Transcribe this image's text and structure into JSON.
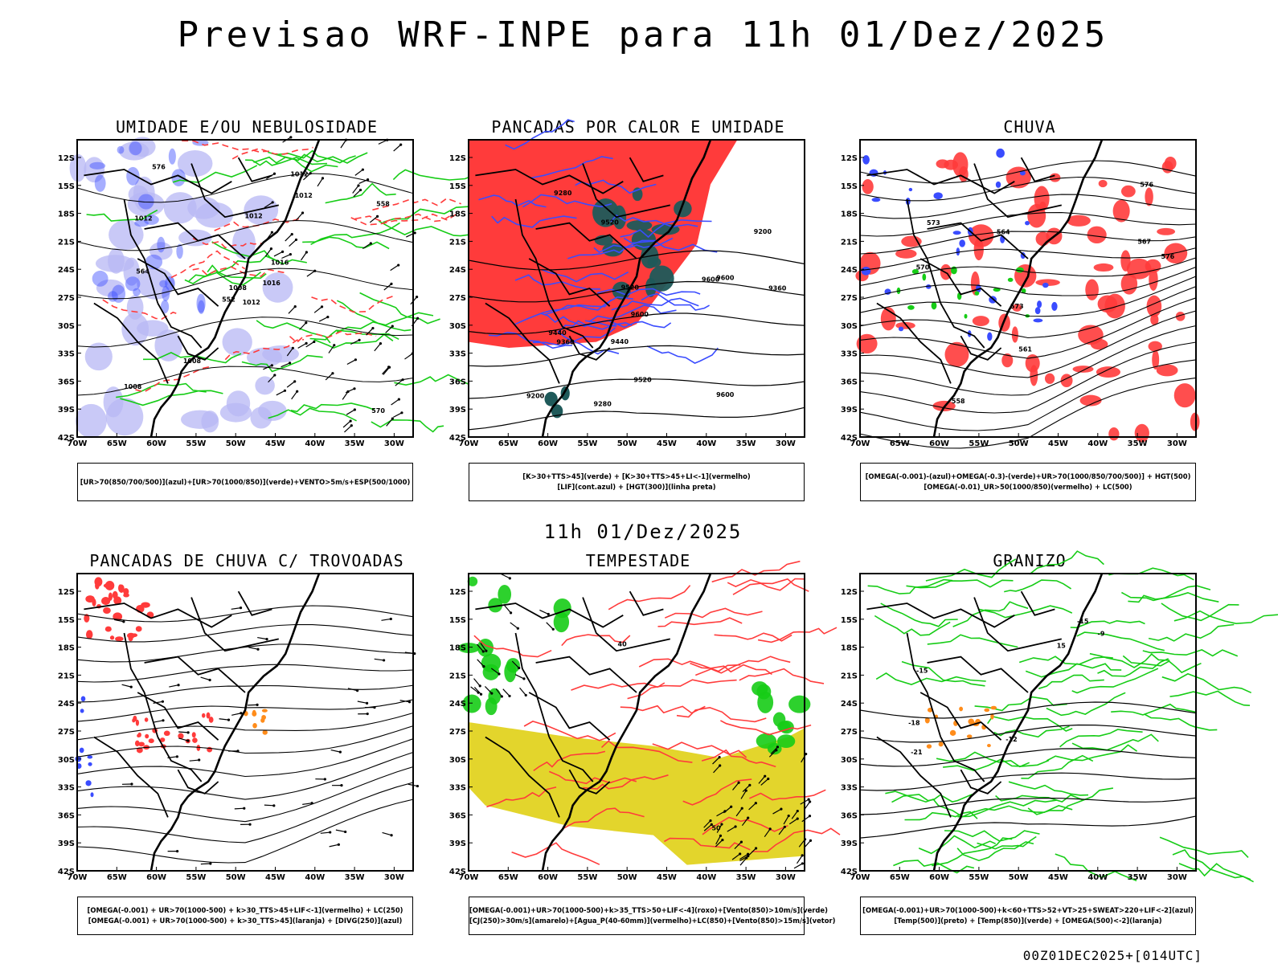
{
  "header": {
    "title": "Previsao WRF-INPE  para 11h 01/Dez/2025"
  },
  "mid_label": "11h 01/Dez/2025",
  "footer": {
    "run": "00Z01DEC2025+[014UTC]"
  },
  "lat_labels": [
    "12S",
    "15S",
    "18S",
    "21S",
    "24S",
    "27S",
    "30S",
    "33S",
    "36S",
    "39S",
    "42S"
  ],
  "lon_labels": [
    "70W",
    "65W",
    "60W",
    "55W",
    "50W",
    "45W",
    "40W",
    "35W",
    "30W"
  ],
  "colors": {
    "blue": "#3a4cff",
    "lavender": "#b7b7f4",
    "green": "#16cc16",
    "red": "#ff3b3b",
    "teal": "#1f5a5a",
    "yellow": "#e3d52c",
    "orange": "#ff8c1a"
  },
  "panels": [
    {
      "title": "UMIDADE E/OU NEBULOSIDADE",
      "legend": [
        "[UR>70(850/700/500)](azul)+[UR>70(1000/850)](verde)+VENTO>5m/s+ESP(500/1000)"
      ],
      "contour_labels": [
        "1012",
        "1012",
        "1008",
        "1008",
        "1016",
        "1008",
        "1012",
        "1012",
        "1012",
        "1016",
        "576",
        "570",
        "564",
        "558",
        "552"
      ]
    },
    {
      "title": "PANCADAS POR CALOR E UMIDADE",
      "legend": [
        "[K>30+TTS>45](verde) + [K>30+TTS>45+LI<-1](vermelho)",
        "[LIF](cont.azul) + [HGT(300)](linha preta)"
      ],
      "contour_labels": [
        "9600",
        "9600",
        "9600",
        "9600",
        "9520",
        "9520",
        "9520",
        "9440",
        "9440",
        "9360",
        "9360",
        "9280",
        "9280",
        "9200",
        "9200"
      ]
    },
    {
      "title": "CHUVA",
      "legend": [
        "[OMEGA(-0.001)-(azul)+OMEGA(-0.3)-(verde)+UR>70(1000/850/700/500)] + HGT(500)",
        "[OMEGA(-0.01)_UR>50(1000/850)(vermelho) + LC(500)"
      ],
      "contour_labels": [
        "576",
        "573",
        "570",
        "567",
        "564",
        "561",
        "558",
        "576",
        "573"
      ]
    },
    {
      "title": "PANCADAS DE CHUVA C/ TROVOADAS",
      "legend": [
        "[OMEGA(-0.001) + UR>70(1000-500) + k>30_TTS>45+LIF<-1](vermelho) + LC(250)",
        "[OMEGA(-0.001) + UR>70(1000-500) + k>30_TTS>45](laranja) + [DIVG(250)](azul)"
      ],
      "contour_labels": []
    },
    {
      "title": "TEMPESTADE",
      "legend": [
        "[OMEGA(-0.001)+UR>70(1000-500)+k>35_TTS>50+LIF<-4](roxo)+[Vento(850)>10m/s](verde)",
        "[CJ(250)>30m/s](amarelo)+[Agua_P(40-60mm)](vermelho)+LC(850)+[Vento(850)>15m/s](vetor)"
      ],
      "contour_labels": [
        "40",
        "50"
      ]
    },
    {
      "title": "GRANIZO",
      "legend": [
        "[OMEGA(-0.001)+UR>70(1000-500)+k<60+TTS>52+VT>25+SWEAT>220+LIF<-2](azul)",
        "[Temp(500)](preto) + [Temp(850)](verde) + [OMEGA(500)<-2](laranja)"
      ],
      "contour_labels": [
        "-15",
        "-12",
        "-15",
        "-18",
        "-21",
        "-9",
        "15"
      ]
    }
  ]
}
